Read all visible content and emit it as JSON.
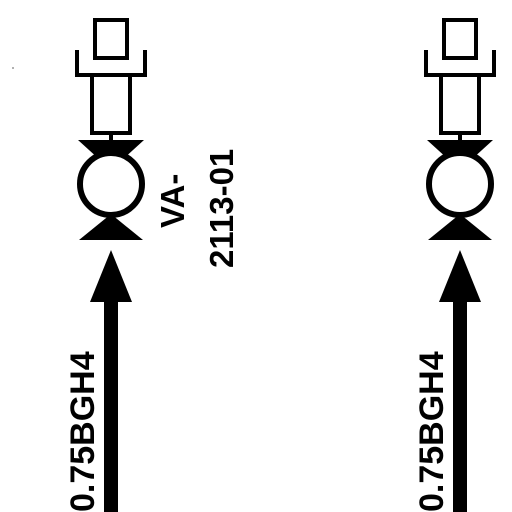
{
  "valves": [
    {
      "tag_prefix": "VA-",
      "tag_number": "2113-01",
      "line_label": "0.75BGH4"
    },
    {
      "tag_prefix": "",
      "tag_number": "",
      "line_label": "0.75BGH4"
    }
  ],
  "colors": {
    "stroke": "#000000",
    "background": "#ffffff"
  }
}
